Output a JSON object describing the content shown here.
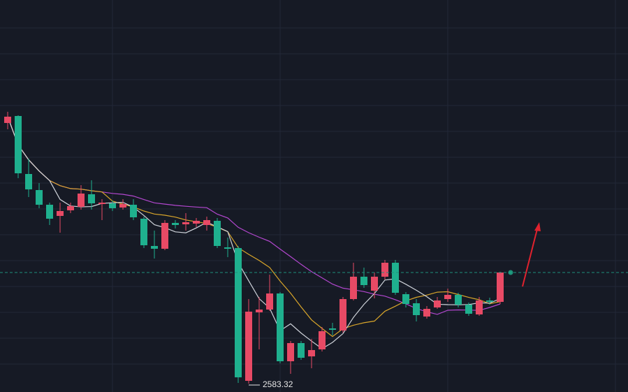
{
  "chart_data": {
    "type": "candlestick",
    "up_color": "#e84a65",
    "down_color": "#1fb08e",
    "ylim": [
      2579.72,
      2748.02
    ],
    "min_low_label": 2583.32,
    "moving_averages": [
      {
        "color": "#cfd3da"
      },
      {
        "color": "#d8a52a"
      },
      {
        "color": "#b347cf"
      }
    ],
    "open": [
      2695.22,
      2698.22,
      2673.32,
      2666.42,
      2660.12,
      2655.32,
      2657.72,
      2659.22,
      2664.62,
      2660.42,
      2660.72,
      2658.92,
      2660.12,
      2654.12,
      2642.42,
      2641.22,
      2652.32,
      2651.72,
      2652.02,
      2651.42,
      2653.22,
      2641.82,
      2641.52,
      2584.52,
      2613.92,
      2615.12,
      2622.02,
      2592.92,
      2600.72,
      2595.02,
      2598.02,
      2607.02,
      2606.12,
      2619.62,
      2629.22,
      2623.22,
      2629.22,
      2635.22,
      2621.72,
      2617.82,
      2612.12,
      2616.02,
      2619.62,
      2621.42,
      2617.22,
      2613.02,
      2619.02,
      2618.42
    ],
    "high": [
      2700.02,
      2698.52,
      2679.92,
      2669.42,
      2661.02,
      2661.02,
      2661.02,
      2668.52,
      2670.62,
      2662.52,
      2661.92,
      2662.52,
      2662.52,
      2655.02,
      2649.02,
      2653.52,
      2653.52,
      2656.52,
      2654.42,
      2655.02,
      2654.42,
      2646.02,
      2642.42,
      2619.62,
      2620.52,
      2630.12,
      2622.62,
      2601.62,
      2601.62,
      2602.52,
      2607.62,
      2609.42,
      2620.52,
      2635.22,
      2633.12,
      2631.02,
      2636.42,
      2636.42,
      2622.62,
      2619.62,
      2616.62,
      2620.52,
      2624.12,
      2622.32,
      2618.12,
      2620.52,
      2620.22,
      2631.32
    ],
    "low": [
      2692.52,
      2671.52,
      2663.42,
      2658.62,
      2651.42,
      2648.12,
      2656.52,
      2658.02,
      2658.02,
      2653.52,
      2657.42,
      2658.02,
      2653.52,
      2641.52,
      2637.02,
      2640.62,
      2649.92,
      2649.02,
      2650.52,
      2649.02,
      2641.52,
      2637.62,
      2583.62,
      2583.32,
      2598.02,
      2614.52,
      2592.02,
      2587.52,
      2593.52,
      2589.92,
      2597.12,
      2604.02,
      2605.22,
      2619.02,
      2624.42,
      2619.92,
      2628.02,
      2621.42,
      2616.02,
      2610.02,
      2611.22,
      2615.42,
      2618.42,
      2616.02,
      2612.42,
      2612.42,
      2617.22,
      2617.52
    ],
    "close": [
      2697.92,
      2673.62,
      2666.72,
      2660.12,
      2654.12,
      2657.42,
      2659.52,
      2664.92,
      2660.72,
      2661.02,
      2658.62,
      2660.42,
      2654.72,
      2642.72,
      2641.22,
      2652.32,
      2651.42,
      2652.62,
      2653.22,
      2653.52,
      2642.42,
      2641.22,
      2586.02,
      2614.22,
      2615.12,
      2622.02,
      2592.92,
      2600.72,
      2594.42,
      2597.72,
      2605.82,
      2606.42,
      2619.62,
      2629.22,
      2625.62,
      2629.22,
      2635.22,
      2622.32,
      2617.52,
      2612.72,
      2615.42,
      2619.02,
      2621.42,
      2617.22,
      2613.32,
      2619.02,
      2618.42,
      2631.02
    ]
  }
}
